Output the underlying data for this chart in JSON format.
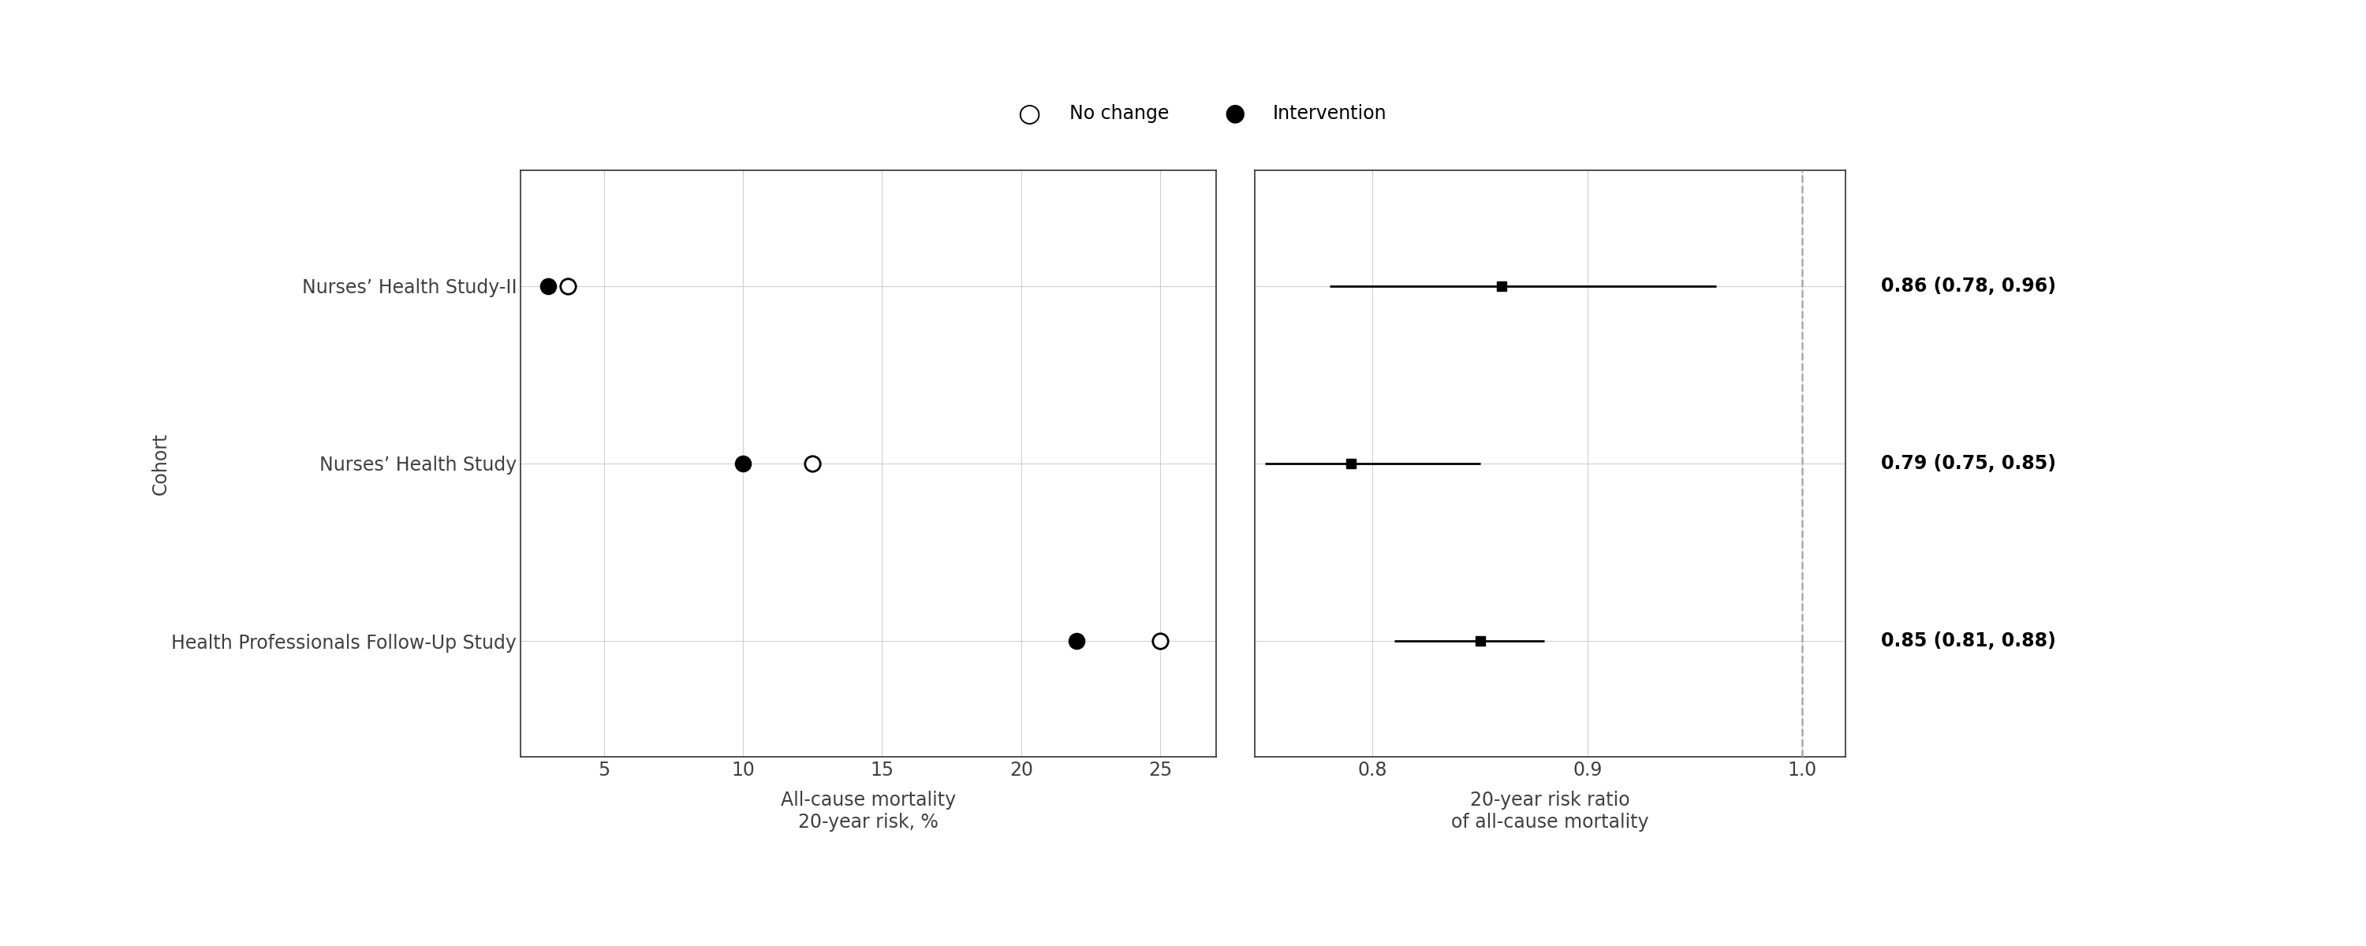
{
  "cohorts": [
    "Nurses’ Health Study-II",
    "Nurses’ Health Study",
    "Health Professionals Follow-Up Study"
  ],
  "risk_intervention": [
    3.0,
    10.0,
    22.0
  ],
  "risk_nochange": [
    3.7,
    12.5,
    25.0
  ],
  "rr_point": [
    0.86,
    0.79,
    0.85
  ],
  "rr_lo": [
    0.78,
    0.75,
    0.81
  ],
  "rr_hi": [
    0.96,
    0.85,
    0.88
  ],
  "rr_labels": [
    "0.86 (0.78, 0.96)",
    "0.79 (0.75, 0.85)",
    "0.85 (0.81, 0.88)"
  ],
  "left_xlim": [
    2,
    27
  ],
  "left_xticks": [
    5,
    10,
    15,
    20,
    25
  ],
  "right_xlim": [
    0.745,
    1.02
  ],
  "right_xticks": [
    0.8,
    0.9,
    1.0
  ],
  "right_vline": 1.0,
  "left_xlabel_line1": "All-cause mortality",
  "left_xlabel_line2": "20-year risk, %",
  "right_xlabel_line1": "20-year risk ratio",
  "right_xlabel_line2": "of all-cause mortality",
  "ylabel": "Cohort",
  "legend_nochange": "No change",
  "legend_intervention": "Intervention",
  "background_color": "#ffffff",
  "grid_color": "#d0d0d0",
  "text_color": "#000000",
  "label_color": "#404040",
  "marker_size_circle": 14,
  "marker_size_square": 9,
  "linewidth_ci": 2.0,
  "spine_color": "#333333"
}
